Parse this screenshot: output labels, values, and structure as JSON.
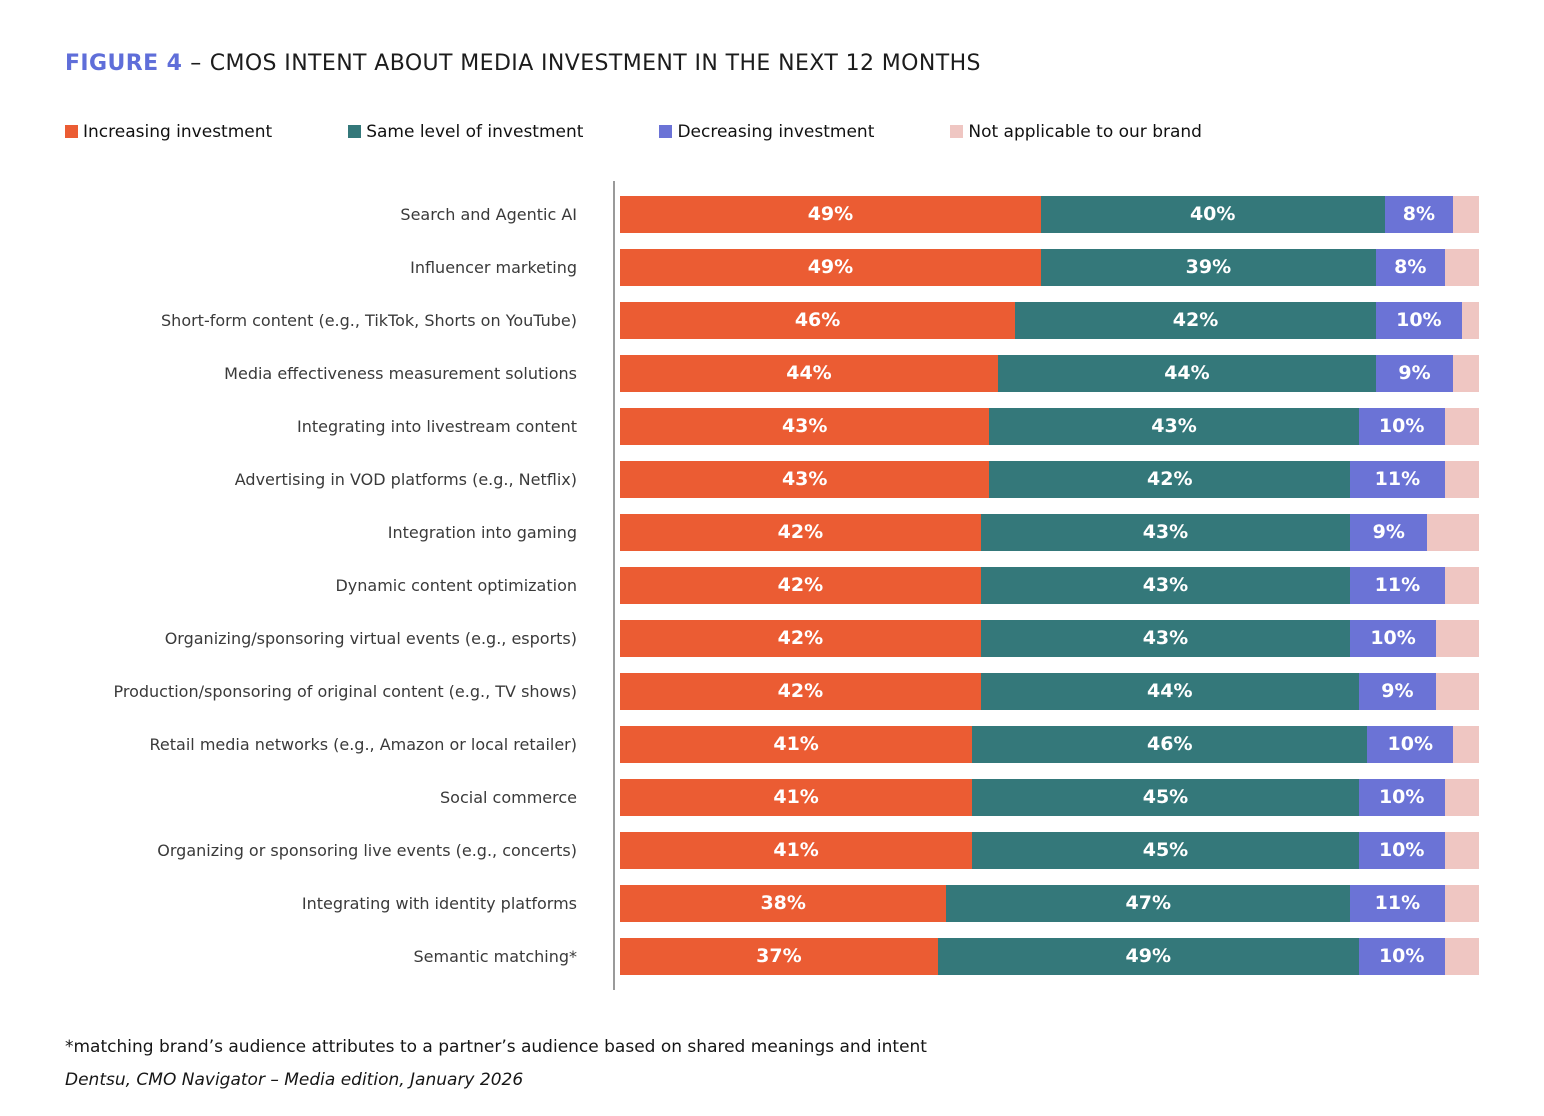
{
  "title": {
    "figure_label": "FIGURE 4",
    "separator": "–",
    "text": "CMOS INTENT ABOUT MEDIA INVESTMENT IN THE NEXT 12 MONTHS"
  },
  "colors": {
    "figure_label_blue": "#5F6ED9",
    "increasing": "#EB5C33",
    "same_level": "#34787A",
    "decreasing": "#6B73D6",
    "not_applicable": "#EFC6C2",
    "axis_line": "#9a9a9a"
  },
  "chart_data": {
    "type": "bar",
    "orientation": "horizontal",
    "stacked": true,
    "xlim": [
      0,
      100
    ],
    "value_suffix": "%",
    "legend_position": "top",
    "grid": false,
    "categories": [
      "Search and Agentic AI",
      "Influencer marketing",
      "Short-form content (e.g., TikTok, Shorts on YouTube)",
      "Media effectiveness measurement solutions",
      "Integrating into livestream content",
      "Advertising in VOD platforms (e.g., Netflix)",
      "Integration into gaming",
      "Dynamic content optimization",
      "Organizing/sponsoring virtual events (e.g., esports)",
      "Production/sponsoring of original content (e.g., TV shows)",
      "Retail media networks (e.g., Amazon or local retailer)",
      "Social commerce",
      "Organizing or sponsoring live events (e.g., concerts)",
      "Integrating with identity platforms",
      "Semantic matching*"
    ],
    "series": [
      {
        "key": "increasing",
        "name": "Increasing investment",
        "color": "#EB5C33",
        "labels_shown": true,
        "values": [
          49,
          49,
          46,
          44,
          43,
          43,
          42,
          42,
          42,
          42,
          41,
          41,
          41,
          38,
          37
        ]
      },
      {
        "key": "same-level",
        "name": "Same level of investment",
        "color": "#34787A",
        "labels_shown": true,
        "values": [
          40,
          39,
          42,
          44,
          43,
          42,
          43,
          43,
          43,
          44,
          46,
          45,
          45,
          47,
          49
        ]
      },
      {
        "key": "decreasing",
        "name": "Decreasing investment",
        "color": "#6B73D6",
        "labels_shown": true,
        "values": [
          8,
          8,
          10,
          9,
          10,
          11,
          9,
          11,
          10,
          9,
          10,
          10,
          10,
          11,
          10
        ]
      },
      {
        "key": "not-applicable",
        "name": "Not applicable to our brand",
        "color": "#EFC6C2",
        "labels_shown": false,
        "values": [
          3,
          4,
          2,
          3,
          4,
          4,
          6,
          4,
          5,
          5,
          3,
          4,
          4,
          4,
          4
        ]
      }
    ]
  },
  "footnotes": {
    "asterisk": "*matching brand’s audience attributes to a partner’s audience based on shared meanings and intent",
    "source": "Dentsu, CMO Navigator – Media edition, January 2026"
  }
}
